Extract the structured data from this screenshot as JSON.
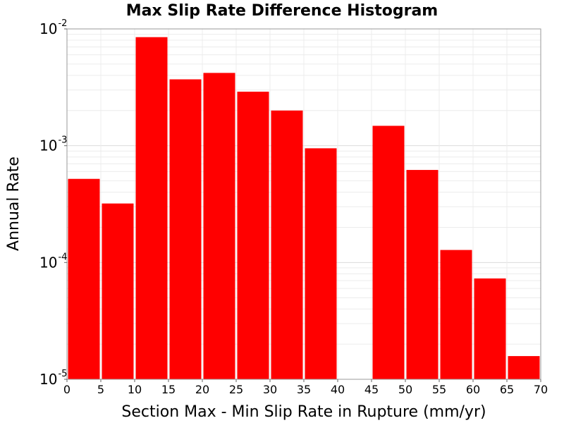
{
  "chart_data": {
    "type": "bar",
    "title": "Max Slip Rate Difference Histogram",
    "xlabel": "Section Max - Min Slip Rate in Rupture (mm/yr)",
    "ylabel": "Annual Rate",
    "yscale": "log",
    "xlim": [
      0,
      70
    ],
    "ylim": [
      1e-05,
      0.01
    ],
    "xticks": [
      "0",
      "5",
      "10",
      "15",
      "20",
      "25",
      "30",
      "35",
      "40",
      "45",
      "50",
      "55",
      "60",
      "65",
      "70"
    ],
    "yticks": [
      {
        "base": "10",
        "exp": "-5",
        "value": 1e-05
      },
      {
        "base": "10",
        "exp": "-4",
        "value": 0.0001
      },
      {
        "base": "10",
        "exp": "-3",
        "value": 0.001
      },
      {
        "base": "10",
        "exp": "-2",
        "value": 0.01
      }
    ],
    "bin_width": 5,
    "bins": [
      {
        "x": 2.5,
        "value": 0.00052
      },
      {
        "x": 7.5,
        "value": 0.00032
      },
      {
        "x": 12.5,
        "value": 0.0085
      },
      {
        "x": 17.5,
        "value": 0.0037
      },
      {
        "x": 22.5,
        "value": 0.0042
      },
      {
        "x": 27.5,
        "value": 0.0029
      },
      {
        "x": 32.5,
        "value": 0.002
      },
      {
        "x": 37.5,
        "value": 0.00095
      },
      {
        "x": 42.5,
        "value": 0
      },
      {
        "x": 47.5,
        "value": 0.00148
      },
      {
        "x": 52.5,
        "value": 0.00062
      },
      {
        "x": 57.5,
        "value": 0.000128
      },
      {
        "x": 62.5,
        "value": 7.3e-05
      },
      {
        "x": 67.5,
        "value": 1.58e-05
      }
    ],
    "bar_color": "#ff0000",
    "grid": true,
    "legend": "none"
  }
}
